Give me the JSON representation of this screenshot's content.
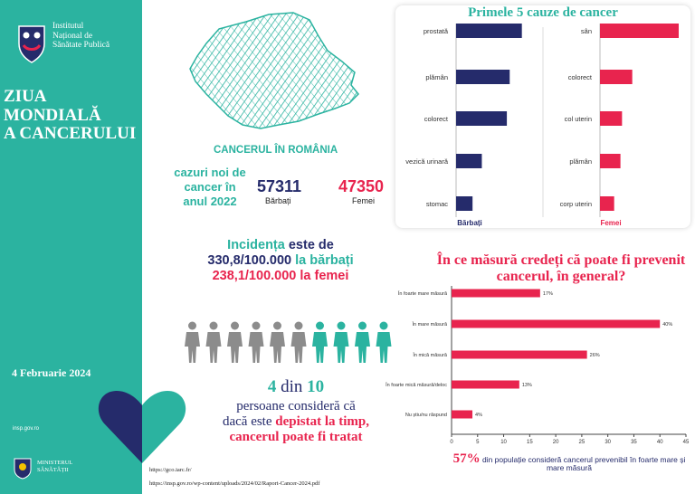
{
  "sidebar": {
    "institute": [
      "Institutul",
      "Național de",
      "Sănătate Publică"
    ],
    "headline": [
      "ZIUA",
      "MONDIALĂ",
      "A CANCERULUI"
    ],
    "date": "4 Februarie 2024",
    "website": "insp.gov.ro",
    "ministry": [
      "MINISTERUL",
      "SĂNĂTĂȚII"
    ]
  },
  "romania": {
    "title": "CANCERUL ÎN ROMÂNIA",
    "cases_label": "cazuri noi de cancer în anul 2022",
    "men_value": "57311",
    "men_label": "Bărbați",
    "women_value": "47350",
    "women_label": "Femei"
  },
  "incidence": {
    "w1": "Incidența",
    "w2": " este de",
    "men_rate": "330,8",
    "men_unit": "/100.000",
    "men_text": " la bărbați",
    "women_rate": "238,1",
    "women_unit": "/100.000",
    "women_text": " la femei"
  },
  "survey_text": {
    "n1": "4",
    "din": " din ",
    "n2": "10",
    "line1": "persoane consideră că",
    "line2a": "dacă este ",
    "line2b": "depistat la timp,",
    "line3": "cancerul poate fi tratat"
  },
  "people": {
    "total": 10,
    "highlighted": 4
  },
  "links": [
    "https://gco.iarc.fr/",
    "https://insp.gov.ro/wp-content/uploads/2024/02/Raport-Cancer-2024.pdf"
  ],
  "colors": {
    "teal": "#2bb3a0",
    "navy": "#252b6b",
    "red": "#e8244e",
    "gray": "#8c8c8c"
  },
  "chart_data": [
    {
      "type": "bar",
      "title": "Primele 5 cauze de cancer",
      "panels": [
        {
          "name": "Bărbați",
          "categories": [
            "prostată",
            "plămân",
            "colorect",
            "vezică urinară",
            "stomac"
          ],
          "values": [
            92,
            75,
            71,
            36,
            23
          ]
        },
        {
          "name": "Femei",
          "categories": [
            "sân",
            "colorect",
            "col uterin",
            "plămân",
            "corp uterin"
          ],
          "values": [
            100,
            41,
            28,
            26,
            18
          ]
        }
      ]
    },
    {
      "type": "bar",
      "title": "În ce măsură credeți că poate fi prevenit cancerul, în general?",
      "categories": [
        "În foarte mare măsură",
        "În mare măsură",
        "În mică măsură",
        "În foarte mică măsură/deloc",
        "Nu știu/nu răspund"
      ],
      "values": [
        17,
        40,
        26,
        13,
        4
      ],
      "value_labels": [
        "17%",
        "40%",
        "26%",
        "13%",
        "4%"
      ],
      "xlim": [
        0,
        45
      ],
      "xticks": [
        "0",
        "5",
        "10",
        "15",
        "20",
        "25",
        "30",
        "35",
        "40",
        "45"
      ],
      "note_value": "57%",
      "note_text": "din populație consideră cancerul prevenibil în foarte mare și mare măsură"
    }
  ]
}
